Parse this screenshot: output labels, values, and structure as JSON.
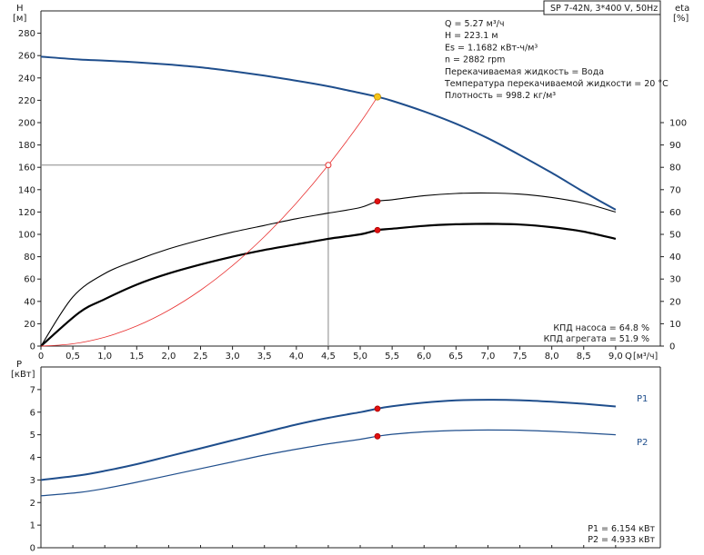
{
  "chart_data": [
    {
      "type": "line",
      "id": "head-efficiency",
      "title": "SP 7-42N, 3*400 V, 50Hz",
      "ylabel_left": "H",
      "yunit_left": "[м]",
      "ylabel_right": "eta",
      "yunit_right": "[%]",
      "xlabel": "Q",
      "xunit": "[м³/ч]",
      "xlim": [
        0,
        9.7
      ],
      "ylim_left": [
        0,
        300
      ],
      "ylim_right": [
        0,
        150
      ],
      "xticks": [
        "0",
        "0,5",
        "1,0",
        "1,5",
        "2,0",
        "2,5",
        "3,0",
        "3,5",
        "4,0",
        "4,5",
        "5,0",
        "5,5",
        "6,0",
        "6,5",
        "7,0",
        "7,5",
        "8,0",
        "8,5",
        "9,0"
      ],
      "yticks_left": [
        "0",
        "20",
        "40",
        "60",
        "80",
        "100",
        "120",
        "140",
        "160",
        "180",
        "200",
        "220",
        "240",
        "260",
        "280"
      ],
      "yticks_right": [
        "0",
        "10",
        "20",
        "30",
        "40",
        "50",
        "60",
        "70",
        "80",
        "90",
        "100"
      ],
      "series": [
        {
          "name": "",
          "role": "head",
          "axis": "left",
          "color": "#1f4e8c",
          "x": [
            0.0,
            0.6,
            1.0,
            1.5,
            2.0,
            2.5,
            3.0,
            3.5,
            4.0,
            4.5,
            5.0,
            5.27,
            5.5,
            6.0,
            6.5,
            7.0,
            7.5,
            8.0,
            8.5,
            9.0
          ],
          "y": [
            259,
            256.5,
            255.5,
            254,
            252,
            249.5,
            246,
            242,
            237.5,
            232.5,
            226.5,
            223.1,
            219.5,
            210,
            199,
            186,
            171,
            155,
            138,
            122
          ],
          "dashed_prefix_until": 0.6
        },
        {
          "name": "",
          "role": "pump-efficiency",
          "axis": "right",
          "color": "#000000",
          "x": [
            0.0,
            0.5,
            1.0,
            1.5,
            2.0,
            2.5,
            3.0,
            3.5,
            4.0,
            4.5,
            5.0,
            5.27,
            5.5,
            6.0,
            6.5,
            7.0,
            7.5,
            8.0,
            8.5,
            9.0
          ],
          "y": [
            0,
            22,
            32.5,
            38.5,
            43.5,
            47.5,
            51,
            54,
            57,
            59.5,
            62,
            64.8,
            65.5,
            67.3,
            68.3,
            68.5,
            68,
            66.5,
            64,
            60
          ]
        },
        {
          "name": "",
          "role": "unit-efficiency",
          "axis": "right",
          "color": "#000000",
          "x": [
            0.0,
            0.6,
            1.0,
            1.5,
            2.0,
            2.5,
            3.0,
            3.5,
            4.0,
            4.5,
            5.0,
            5.27,
            5.5,
            6.0,
            6.5,
            7.0,
            7.5,
            8.0,
            8.5,
            9.0
          ],
          "y": [
            0,
            15,
            21,
            27.5,
            32.5,
            36.5,
            40,
            43,
            45.5,
            48,
            50,
            51.9,
            52.5,
            53.8,
            54.5,
            54.7,
            54.4,
            53.2,
            51.2,
            48
          ]
        },
        {
          "name": "",
          "role": "system-curve",
          "axis": "left",
          "color": "#e83030",
          "x": [
            0.0,
            0.5,
            1.0,
            1.5,
            2.0,
            2.5,
            3.0,
            3.5,
            4.0,
            4.5,
            5.0,
            5.27
          ],
          "y": [
            0,
            2,
            8,
            18,
            32,
            50,
            72,
            98,
            128,
            162,
            200,
            223.1
          ]
        }
      ],
      "guide_point": {
        "x": 4.5,
        "y": 162
      },
      "duty_points": [
        {
          "role": "head",
          "x": 5.27,
          "y": 223.1,
          "color": "#f5c518"
        },
        {
          "role": "pump-efficiency",
          "x": 5.27,
          "y": 64.8,
          "color": "#e01010"
        },
        {
          "role": "unit-efficiency",
          "x": 5.27,
          "y": 51.9,
          "color": "#e01010"
        }
      ],
      "annotations": [
        "Q = 5.27 м³/ч",
        "H = 223.1 м",
        "Es = 1.1682 кВт-ч/м³",
        "n = 2882 rpm",
        "Перекачиваемая жидкость = Вода",
        "Температура перекачиваемой жидкости = 20 °C",
        "Плотность = 998.2 кг/м³"
      ],
      "efficiency_labels": [
        "КПД насоса = 64.8 %",
        "КПД агрегата = 51.9 %"
      ],
      "grid": false
    },
    {
      "type": "line",
      "id": "power",
      "ylabel": "P",
      "yunit": "[кВт]",
      "xlim": [
        0,
        9.7
      ],
      "ylim": [
        0,
        8
      ],
      "yticks": [
        "0",
        "1",
        "2",
        "3",
        "4",
        "5",
        "6",
        "7"
      ],
      "series": [
        {
          "name": "P1",
          "color": "#1f4e8c",
          "x": [
            0.0,
            0.6,
            1.0,
            1.5,
            2.0,
            2.5,
            3.0,
            3.5,
            4.0,
            4.5,
            5.0,
            5.27,
            5.5,
            6.0,
            6.5,
            7.0,
            7.5,
            8.0,
            8.5,
            9.0
          ],
          "y": [
            3.0,
            3.2,
            3.4,
            3.7,
            4.05,
            4.4,
            4.75,
            5.1,
            5.45,
            5.75,
            6.0,
            6.154,
            6.26,
            6.42,
            6.52,
            6.55,
            6.53,
            6.46,
            6.37,
            6.25
          ]
        },
        {
          "name": "P2",
          "color": "#1f4e8c",
          "x": [
            0.0,
            0.6,
            1.0,
            1.5,
            2.0,
            2.5,
            3.0,
            3.5,
            4.0,
            4.5,
            5.0,
            5.27,
            5.5,
            6.0,
            6.5,
            7.0,
            7.5,
            8.0,
            8.5,
            9.0
          ],
          "y": [
            2.3,
            2.45,
            2.62,
            2.9,
            3.2,
            3.5,
            3.8,
            4.1,
            4.36,
            4.6,
            4.8,
            4.933,
            5.02,
            5.13,
            5.19,
            5.21,
            5.2,
            5.15,
            5.08,
            5.0
          ]
        }
      ],
      "duty_points": [
        {
          "series": "P1",
          "x": 5.27,
          "y": 6.154,
          "color": "#e01010"
        },
        {
          "series": "P2",
          "x": 5.27,
          "y": 4.933,
          "color": "#e01010"
        }
      ],
      "annotations": [
        "P1 = 6.154 кВт",
        "P2 = 4.933 кВт"
      ],
      "grid": false
    }
  ]
}
